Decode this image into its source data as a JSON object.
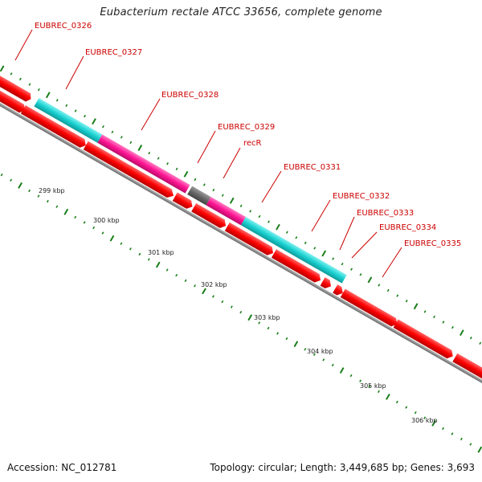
{
  "title": "Eubacterium rectale ATCC 33656, complete genome",
  "footer": {
    "accession": "Accession: NC_012781",
    "summary": "Topology: circular; Length: 3,449,685 bp; Genes: 3,693"
  },
  "colors": {
    "cds": "#ff0000",
    "cyan": "#1ad1d1",
    "magenta": "#ff1493",
    "grey": "#666666",
    "label": "#cc0000",
    "tick": "#1a7f1a",
    "backbone": "#888888"
  },
  "gene_labels": [
    "EUBREC_0326",
    "EUBREC_0327",
    "EUBREC_0328",
    "EUBREC_0329",
    "recR",
    "EUBREC_0331",
    "EUBREC_0332",
    "EUBREC_0333",
    "EUBREC_0334",
    "EUBREC_0335"
  ],
  "kbp_labels": [
    "299 kbp",
    "300 kbp",
    "301 kbp",
    "302 kbp",
    "303 kbp",
    "304 kbp",
    "305 kbp",
    "306 kbp"
  ]
}
